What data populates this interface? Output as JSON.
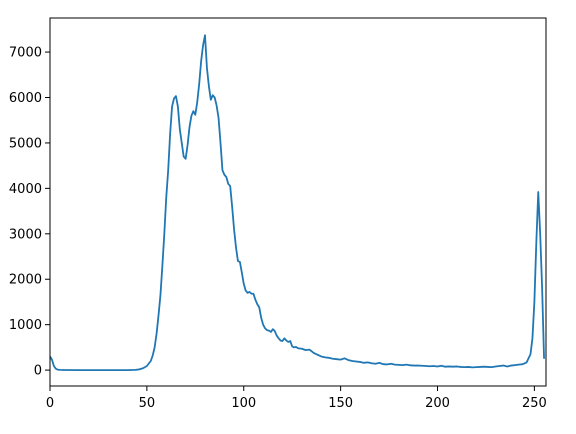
{
  "chart_data": {
    "type": "line",
    "title": "",
    "xlabel": "",
    "ylabel": "",
    "xlim": [
      0,
      256
    ],
    "ylim": [
      -350,
      7750
    ],
    "xticks": [
      0,
      50,
      100,
      150,
      200,
      250
    ],
    "yticks": [
      0,
      1000,
      2000,
      3000,
      4000,
      5000,
      6000,
      7000
    ],
    "grid": false,
    "legend": "none",
    "line_color": "#1f77b4",
    "series": [
      {
        "values": [
          [
            0,
            300
          ],
          [
            1,
            230
          ],
          [
            2,
            90
          ],
          [
            3,
            30
          ],
          [
            4,
            10
          ],
          [
            5,
            5
          ],
          [
            8,
            2
          ],
          [
            15,
            0
          ],
          [
            20,
            0
          ],
          [
            30,
            0
          ],
          [
            40,
            0
          ],
          [
            44,
            5
          ],
          [
            46,
            15
          ],
          [
            48,
            40
          ],
          [
            50,
            90
          ],
          [
            52,
            200
          ],
          [
            53,
            320
          ],
          [
            54,
            500
          ],
          [
            55,
            800
          ],
          [
            56,
            1200
          ],
          [
            57,
            1650
          ],
          [
            58,
            2300
          ],
          [
            59,
            3000
          ],
          [
            60,
            3800
          ],
          [
            61,
            4400
          ],
          [
            62,
            5200
          ],
          [
            63,
            5800
          ],
          [
            64,
            5980
          ],
          [
            65,
            6030
          ],
          [
            66,
            5800
          ],
          [
            67,
            5300
          ],
          [
            68,
            5000
          ],
          [
            69,
            4700
          ],
          [
            70,
            4650
          ],
          [
            71,
            4950
          ],
          [
            72,
            5350
          ],
          [
            73,
            5600
          ],
          [
            74,
            5700
          ],
          [
            75,
            5620
          ],
          [
            76,
            5900
          ],
          [
            77,
            6300
          ],
          [
            78,
            6800
          ],
          [
            79,
            7150
          ],
          [
            80,
            7370
          ],
          [
            81,
            6650
          ],
          [
            82,
            6250
          ],
          [
            83,
            5950
          ],
          [
            84,
            6050
          ],
          [
            85,
            6000
          ],
          [
            86,
            5820
          ],
          [
            87,
            5550
          ],
          [
            88,
            5000
          ],
          [
            89,
            4400
          ],
          [
            90,
            4300
          ],
          [
            91,
            4250
          ],
          [
            92,
            4100
          ],
          [
            93,
            4050
          ],
          [
            94,
            3600
          ],
          [
            95,
            3100
          ],
          [
            96,
            2700
          ],
          [
            97,
            2400
          ],
          [
            98,
            2380
          ],
          [
            99,
            2150
          ],
          [
            100,
            1900
          ],
          [
            101,
            1750
          ],
          [
            102,
            1700
          ],
          [
            103,
            1720
          ],
          [
            104,
            1680
          ],
          [
            105,
            1680
          ],
          [
            106,
            1550
          ],
          [
            107,
            1450
          ],
          [
            108,
            1380
          ],
          [
            109,
            1150
          ],
          [
            110,
            1000
          ],
          [
            111,
            920
          ],
          [
            112,
            880
          ],
          [
            113,
            870
          ],
          [
            114,
            840
          ],
          [
            115,
            900
          ],
          [
            116,
            860
          ],
          [
            117,
            760
          ],
          [
            118,
            700
          ],
          [
            119,
            650
          ],
          [
            120,
            640
          ],
          [
            121,
            700
          ],
          [
            122,
            650
          ],
          [
            123,
            620
          ],
          [
            124,
            640
          ],
          [
            125,
            520
          ],
          [
            126,
            500
          ],
          [
            127,
            510
          ],
          [
            128,
            480
          ],
          [
            130,
            470
          ],
          [
            132,
            440
          ],
          [
            134,
            450
          ],
          [
            136,
            380
          ],
          [
            138,
            340
          ],
          [
            140,
            300
          ],
          [
            142,
            280
          ],
          [
            144,
            270
          ],
          [
            146,
            250
          ],
          [
            148,
            240
          ],
          [
            150,
            230
          ],
          [
            152,
            260
          ],
          [
            154,
            220
          ],
          [
            156,
            200
          ],
          [
            158,
            190
          ],
          [
            160,
            180
          ],
          [
            162,
            160
          ],
          [
            164,
            170
          ],
          [
            166,
            150
          ],
          [
            168,
            140
          ],
          [
            170,
            160
          ],
          [
            172,
            130
          ],
          [
            174,
            125
          ],
          [
            176,
            140
          ],
          [
            178,
            120
          ],
          [
            180,
            115
          ],
          [
            182,
            110
          ],
          [
            184,
            120
          ],
          [
            186,
            105
          ],
          [
            188,
            100
          ],
          [
            190,
            100
          ],
          [
            192,
            95
          ],
          [
            194,
            90
          ],
          [
            196,
            85
          ],
          [
            198,
            90
          ],
          [
            200,
            80
          ],
          [
            202,
            95
          ],
          [
            204,
            75
          ],
          [
            206,
            80
          ],
          [
            208,
            75
          ],
          [
            210,
            80
          ],
          [
            212,
            70
          ],
          [
            214,
            65
          ],
          [
            216,
            70
          ],
          [
            218,
            60
          ],
          [
            220,
            65
          ],
          [
            222,
            70
          ],
          [
            224,
            75
          ],
          [
            226,
            70
          ],
          [
            228,
            65
          ],
          [
            230,
            80
          ],
          [
            232,
            90
          ],
          [
            234,
            100
          ],
          [
            236,
            80
          ],
          [
            238,
            100
          ],
          [
            240,
            110
          ],
          [
            242,
            120
          ],
          [
            244,
            130
          ],
          [
            246,
            170
          ],
          [
            247,
            260
          ],
          [
            248,
            350
          ],
          [
            249,
            700
          ],
          [
            250,
            1500
          ],
          [
            251,
            2800
          ],
          [
            252,
            3920
          ],
          [
            253,
            3000
          ],
          [
            254,
            1800
          ],
          [
            255,
            250
          ]
        ]
      }
    ]
  }
}
